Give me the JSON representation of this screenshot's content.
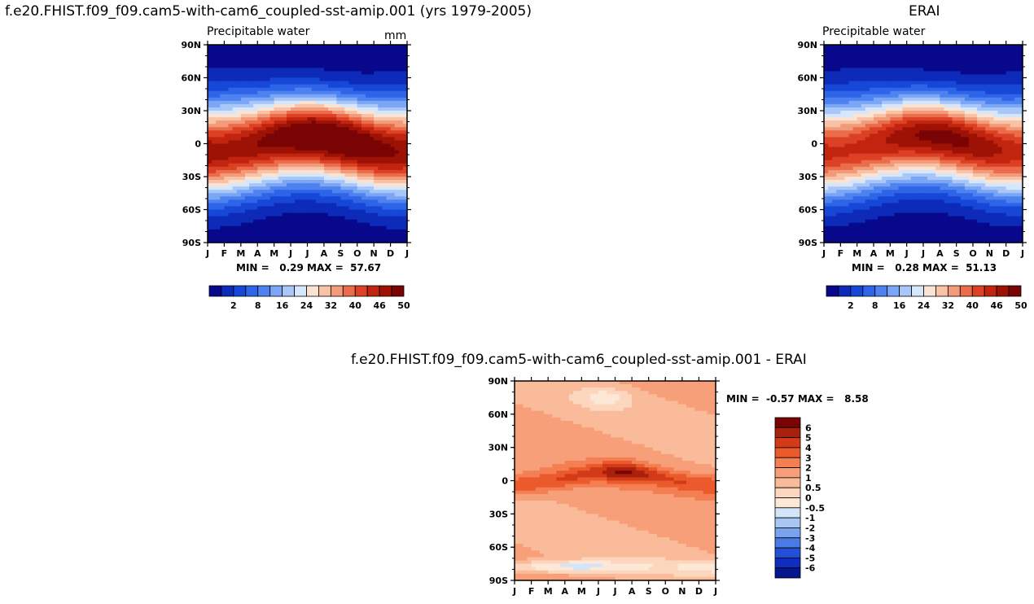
{
  "titles": {
    "left_run": "f.e20.FHIST.f09_f09.cam5-with-cam6_coupled-sst-amip.001 (yrs 1979-2005)",
    "right_run": "ERAI",
    "diff": "f.e20.FHIST.f09_f09.cam5-with-cam6_coupled-sst-amip.001 - ERAI"
  },
  "chart_data": [
    {
      "type": "heatmap",
      "title": "Precipitable water",
      "units": "mm",
      "x_ticks": [
        "J",
        "F",
        "M",
        "A",
        "M",
        "J",
        "J",
        "A",
        "S",
        "O",
        "N",
        "D",
        "J"
      ],
      "y_ticks": [
        "90N",
        "60N",
        "30N",
        "0",
        "30S",
        "60S",
        "90S"
      ],
      "ylim": [
        -90,
        90
      ],
      "min": 0.29,
      "max": 57.67,
      "min_label": "MIN =",
      "min_value": "0.29",
      "max_label": "MAX =",
      "max_value": "57.67",
      "colorbar_labels": [
        "2",
        "8",
        "16",
        "24",
        "32",
        "40",
        "46",
        "50"
      ],
      "colors": [
        "#08088c",
        "#0d2bb8",
        "#1747d6",
        "#2e64e8",
        "#4d82f0",
        "#7aa6f5",
        "#a8c6f8",
        "#d6e6fb",
        "#fbe3d4",
        "#f8c2a7",
        "#f29a7a",
        "#ea6c4a",
        "#dd4125",
        "#c2250f",
        "#9e1206",
        "#7a0404"
      ]
    },
    {
      "type": "heatmap",
      "title": "Precipitable water",
      "x_ticks": [
        "J",
        "F",
        "M",
        "A",
        "M",
        "J",
        "J",
        "A",
        "S",
        "O",
        "N",
        "D",
        "J"
      ],
      "y_ticks": [
        "90N",
        "60N",
        "30N",
        "0",
        "30S",
        "60S",
        "90S"
      ],
      "ylim": [
        -90,
        90
      ],
      "min": 0.28,
      "max": 51.13,
      "min_label": "MIN =",
      "min_value": "0.28",
      "max_label": "MAX =",
      "max_value": "51.13",
      "colorbar_labels": [
        "2",
        "8",
        "16",
        "24",
        "32",
        "40",
        "46",
        "50"
      ]
    },
    {
      "type": "heatmap",
      "x_ticks": [
        "J",
        "F",
        "M",
        "A",
        "M",
        "J",
        "J",
        "A",
        "S",
        "O",
        "N",
        "D",
        "J"
      ],
      "y_ticks": [
        "90N",
        "60N",
        "30N",
        "0",
        "30S",
        "60S",
        "90S"
      ],
      "ylim": [
        -90,
        90
      ],
      "min": -0.57,
      "max": 8.58,
      "min_label": "MIN =",
      "min_value": "-0.57",
      "max_label": "MAX =",
      "max_value": "8.58",
      "colorbar_labels": [
        "6",
        "5",
        "4",
        "3",
        "2",
        "1",
        "0.5",
        "0",
        "-0.5",
        "-1",
        "-2",
        "-3",
        "-4",
        "-5",
        "-6"
      ],
      "colors": [
        "#7a0404",
        "#a9200c",
        "#d23a18",
        "#ea5a2c",
        "#f47f52",
        "#f79f78",
        "#f9bb9a",
        "#fcd6bd",
        "#fde8d8",
        "#d3e5f7",
        "#a8c6f3",
        "#7aa3ee",
        "#4a7ae6",
        "#2450d8",
        "#0e2ec0",
        "#06168c"
      ]
    }
  ]
}
